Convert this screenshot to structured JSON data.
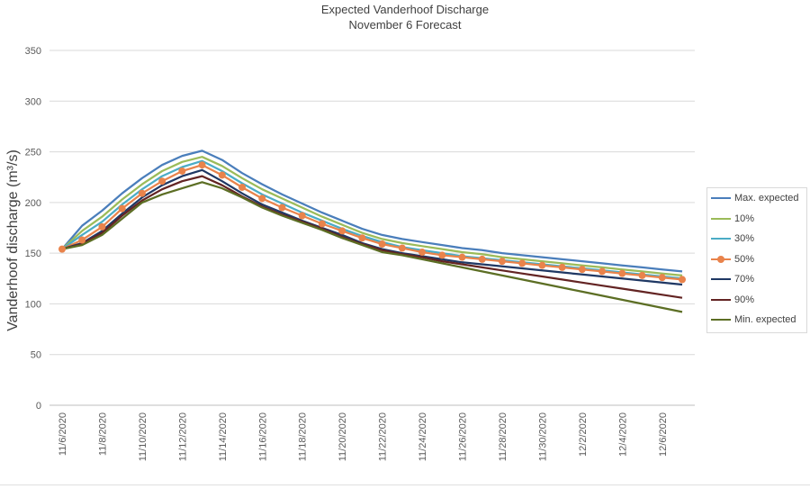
{
  "chart_data": {
    "type": "line",
    "title": "Expected Vanderhoof Discharge",
    "subtitle": "November 6 Forecast",
    "xlabel": "",
    "ylabel": "Vanderhoof discharge (m³/s)",
    "ylim": [
      0,
      350
    ],
    "yticks": [
      0,
      50,
      100,
      150,
      200,
      250,
      300,
      350
    ],
    "grid": "horizontal",
    "legend_position": "right",
    "x": [
      "11/6/2020",
      "11/7/2020",
      "11/8/2020",
      "11/9/2020",
      "11/10/2020",
      "11/11/2020",
      "11/12/2020",
      "11/13/2020",
      "11/14/2020",
      "11/15/2020",
      "11/16/2020",
      "11/17/2020",
      "11/18/2020",
      "11/19/2020",
      "11/20/2020",
      "11/21/2020",
      "11/22/2020",
      "11/23/2020",
      "11/24/2020",
      "11/25/2020",
      "11/26/2020",
      "11/27/2020",
      "11/28/2020",
      "11/29/2020",
      "11/30/2020",
      "12/1/2020",
      "12/2/2020",
      "12/3/2020",
      "12/4/2020",
      "12/5/2020",
      "12/6/2020",
      "12/7/2020"
    ],
    "x_tick_labels": [
      "11/6/2020",
      "11/8/2020",
      "11/10/2020",
      "11/12/2020",
      "11/14/2020",
      "11/16/2020",
      "11/18/2020",
      "11/20/2020",
      "11/22/2020",
      "11/24/2020",
      "11/26/2020",
      "11/28/2020",
      "11/30/2020",
      "12/2/2020",
      "12/4/2020",
      "12/6/2020"
    ],
    "series": [
      {
        "name": "Max. expected",
        "color": "#4a7ebb",
        "markers": false,
        "values": [
          154,
          177,
          192,
          209,
          224,
          237,
          246,
          251,
          242,
          229,
          218,
          208,
          199,
          190,
          182,
          174,
          168,
          164,
          161,
          158,
          155,
          153,
          150,
          148,
          146,
          144,
          142,
          140,
          138,
          136,
          134,
          132
        ]
      },
      {
        "name": "10%",
        "color": "#9bbb59",
        "markers": false,
        "values": [
          154,
          172,
          186,
          203,
          218,
          231,
          240,
          245,
          236,
          224,
          213,
          204,
          195,
          186,
          178,
          170,
          164,
          160,
          157,
          154,
          151,
          149,
          146,
          144,
          142,
          140,
          138,
          136,
          134,
          132,
          130,
          128
        ]
      },
      {
        "name": "30%",
        "color": "#4bacc6",
        "markers": false,
        "values": [
          154,
          168,
          181,
          198,
          213,
          226,
          235,
          241,
          231,
          219,
          208,
          199,
          190,
          182,
          174,
          167,
          161,
          156,
          153,
          150,
          147,
          145,
          143,
          141,
          139,
          137,
          135,
          133,
          131,
          129,
          127,
          125
        ]
      },
      {
        "name": "50%",
        "color": "#e9834b",
        "markers": true,
        "values": [
          154,
          163,
          176,
          194,
          209,
          221,
          231,
          237,
          227,
          215,
          204,
          195,
          187,
          179,
          172,
          165,
          159,
          155,
          151,
          148,
          146,
          144,
          142,
          140,
          138,
          136,
          134,
          132,
          130,
          128,
          126,
          124
        ]
      },
      {
        "name": "70%",
        "color": "#1f3864",
        "markers": false,
        "values": [
          154,
          160,
          172,
          189,
          205,
          217,
          226,
          232,
          221,
          209,
          198,
          190,
          182,
          175,
          168,
          160,
          154,
          150,
          147,
          144,
          141,
          139,
          137,
          135,
          133,
          131,
          129,
          127,
          125,
          123,
          121,
          119
        ]
      },
      {
        "name": "90%",
        "color": "#632423",
        "markers": false,
        "values": [
          154,
          159,
          170,
          187,
          202,
          213,
          221,
          226,
          217,
          206,
          196,
          188,
          181,
          174,
          166,
          159,
          153,
          149,
          146,
          142,
          139,
          136,
          133,
          130,
          127,
          124,
          121,
          118,
          115,
          112,
          109,
          106
        ]
      },
      {
        "name": "Min. expected",
        "color": "#5c6e24",
        "markers": false,
        "values": [
          154,
          158,
          168,
          184,
          200,
          208,
          214,
          220,
          214,
          205,
          195,
          187,
          180,
          173,
          165,
          158,
          151,
          148,
          144,
          140,
          136,
          132,
          128,
          124,
          120,
          116,
          112,
          108,
          104,
          100,
          96,
          92
        ]
      }
    ]
  }
}
